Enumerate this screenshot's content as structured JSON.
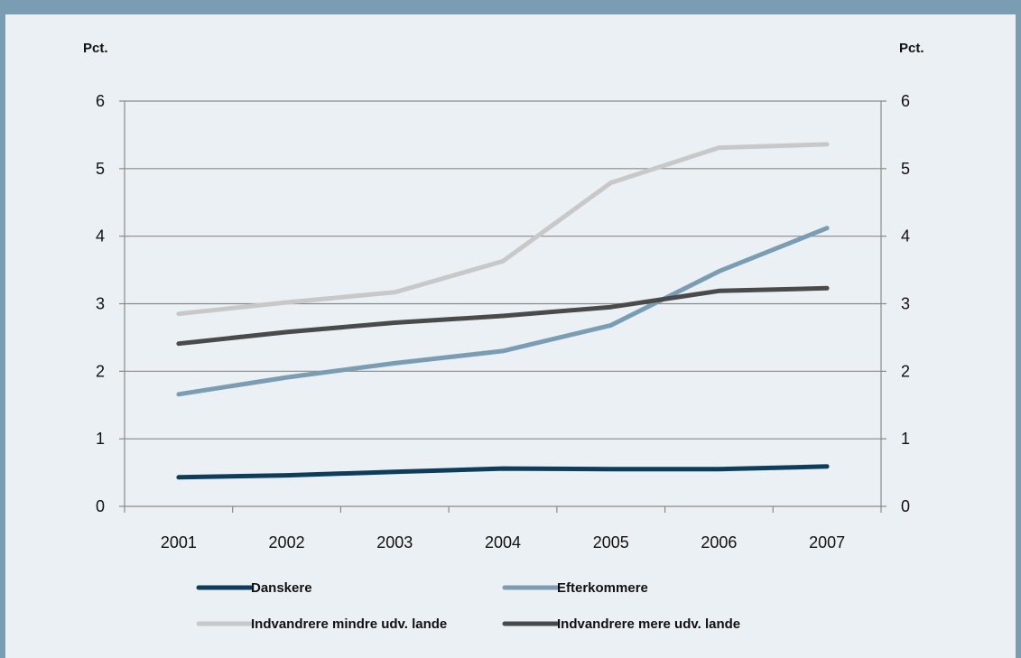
{
  "chart_data": {
    "type": "line",
    "ylabel_left": "Pct.",
    "ylabel_right": "Pct.",
    "ylim": [
      0,
      6
    ],
    "yticks": [
      "0",
      "1",
      "2",
      "3",
      "4",
      "5",
      "6"
    ],
    "categories": [
      "2001",
      "2002",
      "2003",
      "2004",
      "2005",
      "2006",
      "2007"
    ],
    "grid": true,
    "legend_position": "bottom",
    "series": [
      {
        "name": "Danskere",
        "color": "#0e3d5c",
        "values": [
          0.43,
          0.46,
          0.51,
          0.56,
          0.55,
          0.55,
          0.59
        ]
      },
      {
        "name": "Efterkommere",
        "color": "#7b9db3",
        "values": [
          1.66,
          1.91,
          2.12,
          2.3,
          2.68,
          3.48,
          4.12
        ]
      },
      {
        "name": "Indvandrere mindre udv. lande",
        "color": "#c8c8c8",
        "values": [
          2.85,
          3.02,
          3.17,
          3.63,
          4.79,
          5.31,
          5.36
        ]
      },
      {
        "name": "Indvandrere mere udv. lande",
        "color": "#4a4a4a",
        "values": [
          2.41,
          2.58,
          2.72,
          2.82,
          2.95,
          3.19,
          3.23
        ]
      }
    ]
  }
}
